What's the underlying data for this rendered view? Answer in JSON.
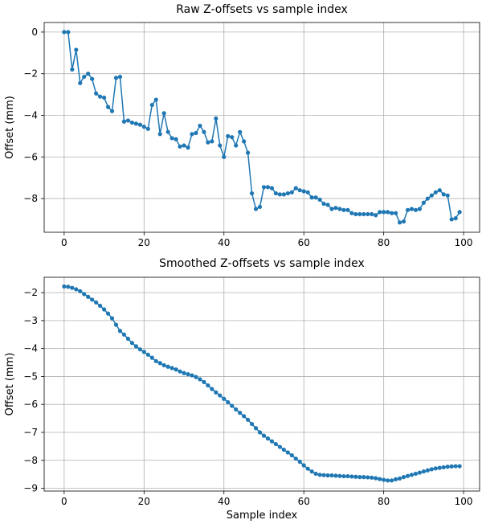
{
  "colors": {
    "series": "#1f77b4",
    "grid": "#b0b0b0",
    "axis": "#000000"
  },
  "chart_data": [
    {
      "type": "line",
      "title": "Raw Z-offsets vs sample index",
      "xlabel": "",
      "ylabel": "Offset (mm)",
      "xlim": [
        -5,
        104
      ],
      "ylim": [
        -9.62,
        0.46
      ],
      "xticks": [
        0,
        20,
        40,
        60,
        80,
        100
      ],
      "xtick_labels": [
        "0",
        "20",
        "40",
        "60",
        "80",
        "100"
      ],
      "yticks": [
        0,
        -2,
        -4,
        -6,
        -8
      ],
      "ytick_labels": [
        "0",
        "−2",
        "−4",
        "−6",
        "−8"
      ],
      "grid": true,
      "marker": "circle",
      "series": [
        {
          "name": "raw",
          "x": [
            0,
            1,
            2,
            3,
            4,
            5,
            6,
            7,
            8,
            9,
            10,
            11,
            12,
            13,
            14,
            15,
            16,
            17,
            18,
            19,
            20,
            21,
            22,
            23,
            24,
            25,
            26,
            27,
            28,
            29,
            30,
            31,
            32,
            33,
            34,
            35,
            36,
            37,
            38,
            39,
            40,
            41,
            42,
            43,
            44,
            45,
            46,
            47,
            48,
            49,
            50,
            51,
            52,
            53,
            54,
            55,
            56,
            57,
            58,
            59,
            60,
            61,
            62,
            63,
            64,
            65,
            66,
            67,
            68,
            69,
            70,
            71,
            72,
            73,
            74,
            75,
            76,
            77,
            78,
            79,
            80,
            81,
            82,
            83,
            84,
            85,
            86,
            87,
            88,
            89,
            90,
            91,
            92,
            93,
            94,
            95,
            96,
            97,
            98,
            99
          ],
          "values": [
            0.0,
            0.0,
            -1.8,
            -0.85,
            -2.45,
            -2.15,
            -2.0,
            -2.25,
            -2.95,
            -3.1,
            -3.15,
            -3.6,
            -3.8,
            -2.2,
            -2.15,
            -4.3,
            -4.25,
            -4.35,
            -4.4,
            -4.45,
            -4.55,
            -4.65,
            -3.5,
            -3.25,
            -4.9,
            -3.9,
            -4.8,
            -5.1,
            -5.15,
            -5.5,
            -5.45,
            -5.55,
            -4.9,
            -4.85,
            -4.5,
            -4.8,
            -5.3,
            -5.25,
            -4.15,
            -5.45,
            -6.0,
            -5.0,
            -5.05,
            -5.45,
            -4.8,
            -5.25,
            -5.8,
            -7.75,
            -8.5,
            -8.4,
            -7.45,
            -7.45,
            -7.5,
            -7.75,
            -7.8,
            -7.8,
            -7.75,
            -7.7,
            -7.5,
            -7.6,
            -7.65,
            -7.7,
            -7.95,
            -7.95,
            -8.05,
            -8.25,
            -8.3,
            -8.5,
            -8.45,
            -8.5,
            -8.55,
            -8.55,
            -8.7,
            -8.75,
            -8.75,
            -8.75,
            -8.75,
            -8.75,
            -8.8,
            -8.65,
            -8.65,
            -8.65,
            -8.7,
            -8.7,
            -9.15,
            -9.1,
            -8.55,
            -8.5,
            -8.55,
            -8.5,
            -8.2,
            -8.0,
            -7.85,
            -7.7,
            -7.6,
            -7.8,
            -7.85,
            -9.0,
            -8.95,
            -8.65
          ]
        }
      ]
    },
    {
      "type": "line",
      "title": "Smoothed Z-offsets vs sample index",
      "xlabel": "Sample index",
      "ylabel": "Offset (mm)",
      "xlim": [
        -5,
        104
      ],
      "ylim": [
        -9.1,
        -1.45
      ],
      "xticks": [
        0,
        20,
        40,
        60,
        80,
        100
      ],
      "xtick_labels": [
        "0",
        "20",
        "40",
        "60",
        "80",
        "100"
      ],
      "yticks": [
        -2,
        -3,
        -4,
        -5,
        -6,
        -7,
        -8,
        -9
      ],
      "ytick_labels": [
        "−2",
        "−3",
        "−4",
        "−5",
        "−6",
        "−7",
        "−8",
        "−9"
      ],
      "grid": true,
      "marker": "circle",
      "series": [
        {
          "name": "smoothed",
          "x": [
            0,
            1,
            2,
            3,
            4,
            5,
            6,
            7,
            8,
            9,
            10,
            11,
            12,
            13,
            14,
            15,
            16,
            17,
            18,
            19,
            20,
            21,
            22,
            23,
            24,
            25,
            26,
            27,
            28,
            29,
            30,
            31,
            32,
            33,
            34,
            35,
            36,
            37,
            38,
            39,
            40,
            41,
            42,
            43,
            44,
            45,
            46,
            47,
            48,
            49,
            50,
            51,
            52,
            53,
            54,
            55,
            56,
            57,
            58,
            59,
            60,
            61,
            62,
            63,
            64,
            65,
            66,
            67,
            68,
            69,
            70,
            71,
            72,
            73,
            74,
            75,
            76,
            77,
            78,
            79,
            80,
            81,
            82,
            83,
            84,
            85,
            86,
            87,
            88,
            89,
            90,
            91,
            92,
            93,
            94,
            95,
            96,
            97,
            98,
            99
          ],
          "values": [
            -1.78,
            -1.79,
            -1.83,
            -1.88,
            -1.95,
            -2.05,
            -2.15,
            -2.25,
            -2.35,
            -2.47,
            -2.6,
            -2.75,
            -2.92,
            -3.15,
            -3.37,
            -3.5,
            -3.65,
            -3.8,
            -3.92,
            -4.03,
            -4.12,
            -4.22,
            -4.33,
            -4.45,
            -4.52,
            -4.6,
            -4.65,
            -4.7,
            -4.75,
            -4.82,
            -4.88,
            -4.92,
            -4.96,
            -5.02,
            -5.1,
            -5.2,
            -5.32,
            -5.45,
            -5.57,
            -5.68,
            -5.8,
            -5.92,
            -6.05,
            -6.18,
            -6.3,
            -6.42,
            -6.55,
            -6.7,
            -6.85,
            -7.0,
            -7.12,
            -7.22,
            -7.32,
            -7.42,
            -7.52,
            -7.62,
            -7.72,
            -7.82,
            -7.94,
            -8.05,
            -8.18,
            -8.3,
            -8.4,
            -8.48,
            -8.52,
            -8.53,
            -8.54,
            -8.54,
            -8.55,
            -8.56,
            -8.57,
            -8.57,
            -8.58,
            -8.59,
            -8.6,
            -8.6,
            -8.61,
            -8.62,
            -8.64,
            -8.67,
            -8.7,
            -8.72,
            -8.72,
            -8.68,
            -8.65,
            -8.6,
            -8.56,
            -8.52,
            -8.48,
            -8.44,
            -8.4,
            -8.36,
            -8.32,
            -8.29,
            -8.27,
            -8.25,
            -8.23,
            -8.22,
            -8.21,
            -8.21
          ]
        }
      ]
    }
  ]
}
